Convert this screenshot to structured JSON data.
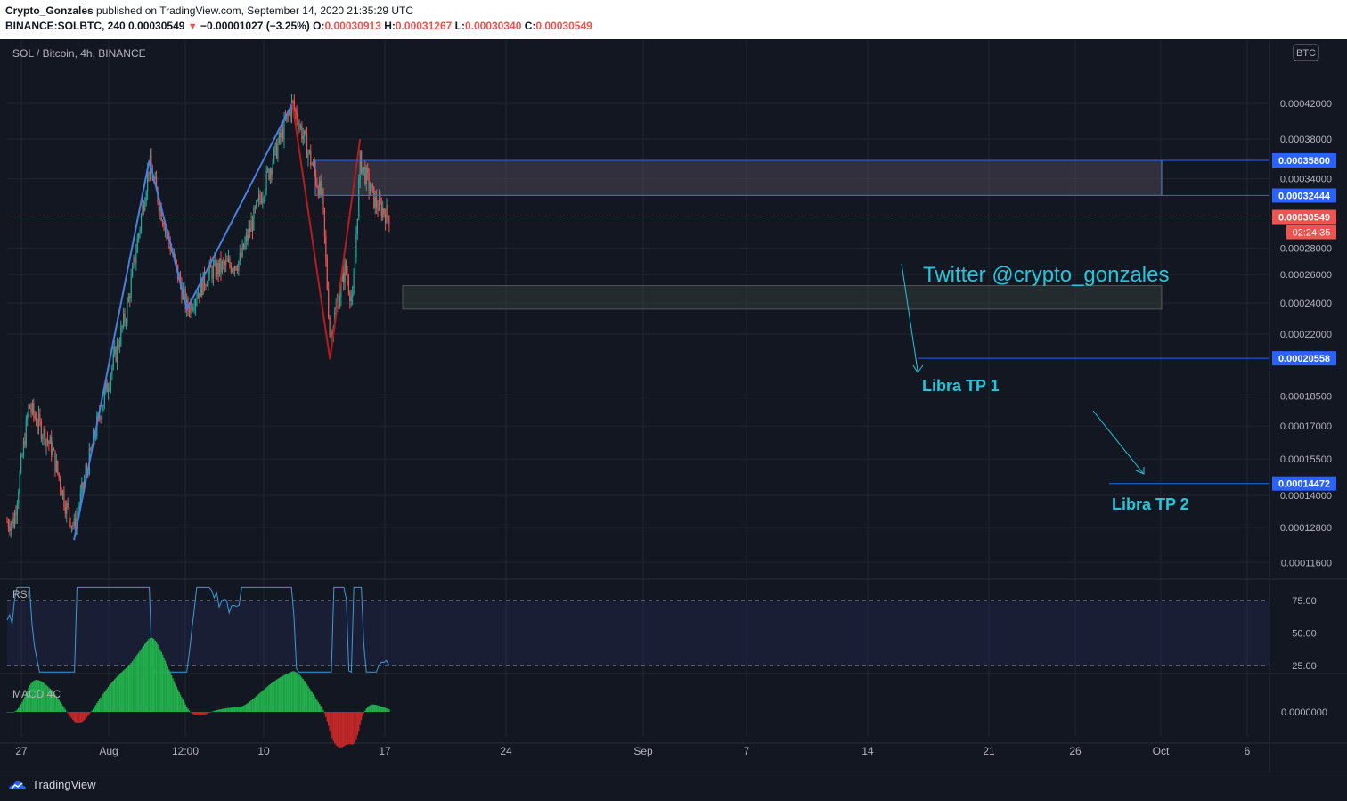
{
  "header": {
    "author": "Crypto_Gonzales",
    "published": "published on TradingView.com, September 14, 2020 21:35:29 UTC",
    "symbol": "BINANCE:SOLBTC, 240",
    "last": "0.00030549",
    "change": "−0.00001027 (−3.25%)",
    "o_label": "O:",
    "o_value": "0.00030913",
    "h_label": "H:",
    "h_value": "0.00031267",
    "l_label": "L:",
    "l_value": "0.00030340",
    "c_label": "C:",
    "c_value": "0.00030549"
  },
  "legend": {
    "main": "SOL / Bitcoin, 4h, BINANCE",
    "rsi": "RSI",
    "macd": "MACD 4C"
  },
  "currency_badge": "BTC",
  "annotations": {
    "twitter": "Twitter  @crypto_gonzales",
    "tp1": "Libra TP 1",
    "tp2": "Libra TP 2"
  },
  "footer": {
    "brand": "TradingView"
  },
  "colors": {
    "background": "#131722",
    "up": "#26a69a",
    "down": "#ef5350",
    "pattern_blue": "#4a7fe0",
    "pattern_red": "#b71c1c",
    "label_blue": "#2962ff",
    "annotation": "#26c6da",
    "rsi_line": "#3a9bd5",
    "macd_green": "#22b14c",
    "macd_red": "#c62828"
  },
  "chart_data": {
    "type": "candlestick",
    "symbol": "SOLBTC",
    "timeframe": "4h",
    "x_ticks": [
      "27",
      "Aug",
      "12:00",
      "10",
      "17",
      "24",
      "Sep",
      "7",
      "14",
      "21",
      "26",
      "Oct",
      "6"
    ],
    "y_ticks": [
      "0.00042000",
      "0.00038000",
      "0.00034000",
      "0.00028000",
      "0.00026000",
      "0.00024000",
      "0.00022000",
      "0.00018500",
      "0.00017000",
      "0.00015500",
      "0.00014000",
      "0.00012800",
      "0.00011600"
    ],
    "ylim": [
      0.000108,
      0.000455
    ],
    "price_path": [
      {
        "t": "Jul 26",
        "p": 0.00013
      },
      {
        "t": "Jul 28",
        "p": 0.00018
      },
      {
        "t": "Jul 31",
        "p": 0.00016
      },
      {
        "t": "Aug 2",
        "p": 0.000135
      },
      {
        "t": "Aug 3",
        "p": 0.000128
      },
      {
        "t": "Aug 6",
        "p": 0.00017
      },
      {
        "t": "Aug 10",
        "p": 0.000235
      },
      {
        "t": "Aug 13",
        "p": 0.000355
      },
      {
        "t": "Aug 15",
        "p": 0.0003
      },
      {
        "t": "Aug 18",
        "p": 0.000236
      },
      {
        "t": "Aug 21",
        "p": 0.000262
      },
      {
        "t": "Aug 25",
        "p": 0.00027
      },
      {
        "t": "Aug 29",
        "p": 0.00035
      },
      {
        "t": "Sep 1",
        "p": 0.00042
      },
      {
        "t": "Sep 3",
        "p": 0.00037
      },
      {
        "t": "Sep 5",
        "p": 0.00032
      },
      {
        "t": "Sep 6",
        "p": 0.000218
      },
      {
        "t": "Sep 8",
        "p": 0.000265
      },
      {
        "t": "Sep 9",
        "p": 0.00024
      },
      {
        "t": "Sep 10",
        "p": 0.000358
      },
      {
        "t": "Sep 12",
        "p": 0.000318
      },
      {
        "t": "Sep 14",
        "p": 0.00030549
      }
    ],
    "zones": [
      {
        "name": "resistance",
        "top": 0.000358,
        "bottom": 0.00032444
      },
      {
        "name": "support",
        "top": 0.000252,
        "bottom": 0.000236
      }
    ],
    "price_labels": [
      {
        "value": "0.00035800",
        "y": 0.000358
      },
      {
        "value": "0.00032444",
        "y": 0.00032444
      },
      {
        "value": "0.00030549",
        "y": 0.00030549,
        "countdown": "02:24:35"
      },
      {
        "value": "0.00020558",
        "y": 0.00020558
      },
      {
        "value": "0.00014472",
        "y": 0.00014472
      }
    ],
    "rsi": {
      "levels": [
        75,
        50,
        25
      ],
      "tick_labels": [
        "75.00",
        "50.00",
        "25.00"
      ]
    },
    "macd": {
      "tick_label": "0.0000000"
    }
  }
}
